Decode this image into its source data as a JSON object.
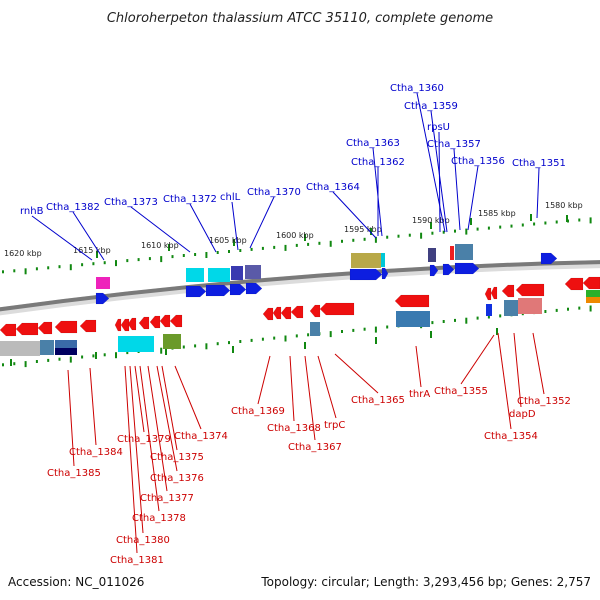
{
  "title": "Chloroherpeton thalassium ATCC 35110, complete genome",
  "accession": "Accession: NC_011026",
  "summary": "Topology: circular; Length: 3,293,456 bp; Genes: 2,757",
  "colors": {
    "forward_label": "#0000cc",
    "reverse_label": "#cc0000",
    "backbone": "#888888",
    "tick": "#118811"
  },
  "kbp_labels": [
    "1620 kbp",
    "1615 kbp",
    "1610 kbp",
    "1605 kbp",
    "1600 kbp",
    "1595 kbp",
    "1590 kbp",
    "1585 kbp",
    "1580 kbp"
  ],
  "forward_labels": [
    "rnhB",
    "Ctha_1382",
    "Ctha_1373",
    "Ctha_1372",
    "chlL",
    "Ctha_1370",
    "Ctha_1364",
    "Ctha_1363",
    "Ctha_1362",
    "Ctha_1360",
    "Ctha_1359",
    "rpsU",
    "Ctha_1357",
    "Ctha_1356",
    "Ctha_1351"
  ],
  "reverse_labels": [
    "Ctha_1385",
    "Ctha_1384",
    "Ctha_1381",
    "Ctha_1380",
    "Ctha_1379",
    "Ctha_1378",
    "Ctha_1377",
    "Ctha_1376",
    "Ctha_1375",
    "Ctha_1374",
    "Ctha_1369",
    "Ctha_1368",
    "Ctha_1367",
    "trpC",
    "Ctha_1365",
    "thrA",
    "Ctha_1355",
    "Ctha_1354",
    "dapD",
    "Ctha_1352"
  ]
}
